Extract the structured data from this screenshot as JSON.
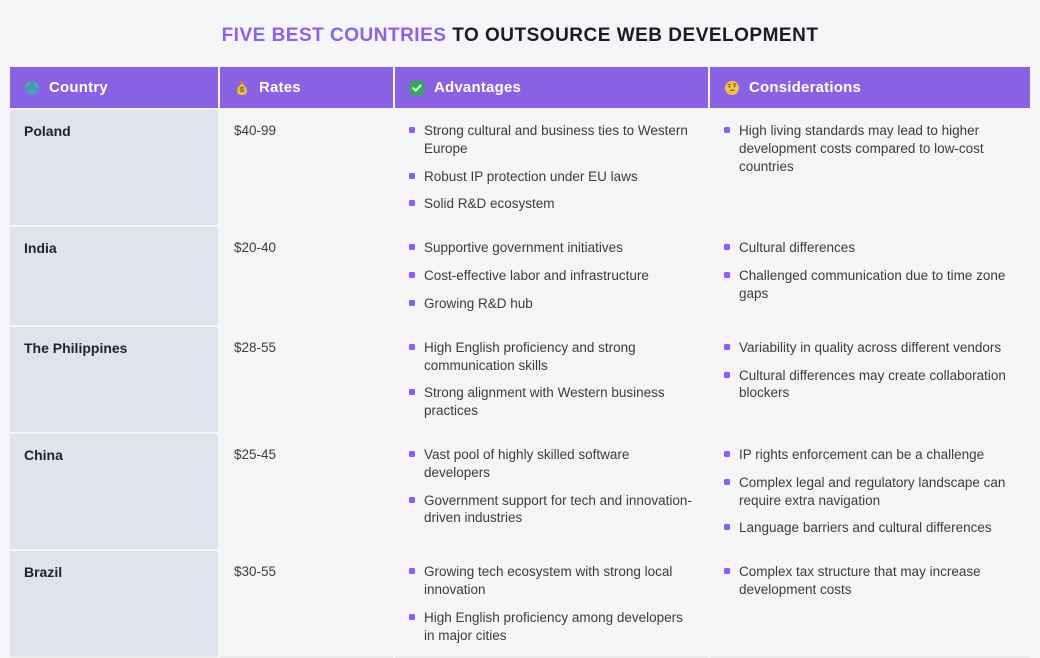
{
  "title": {
    "highlight": "FIVE BEST COUNTRIES",
    "rest": "TO OUTSOURCE WEB DEVELOPMENT"
  },
  "chart_data": {
    "type": "table",
    "title": "FIVE BEST COUNTRIES TO OUTSOURCE WEB DEVELOPMENT",
    "columns": [
      {
        "label": "Country",
        "icon": "globe-icon"
      },
      {
        "label": "Rates",
        "icon": "money-bag-icon"
      },
      {
        "label": "Advantages",
        "icon": "check-mark-icon"
      },
      {
        "label": "Considerations",
        "icon": "thinking-face-icon"
      }
    ],
    "rows": [
      {
        "country": "Poland",
        "rates": "$40-99",
        "advantages": [
          "Strong cultural and business ties to Western Europe",
          "Robust IP protection under EU laws",
          "Solid R&D ecosystem"
        ],
        "considerations": [
          "High living standards may lead to higher development costs compared to low-cost countries"
        ]
      },
      {
        "country": "India",
        "rates": "$20-40",
        "advantages": [
          "Supportive government initiatives",
          "Cost-effective labor and infrastructure",
          "Growing R&D hub"
        ],
        "considerations": [
          "Cultural differences",
          "Challenged communication due to time zone gaps"
        ]
      },
      {
        "country": "The Philippines",
        "rates": "$28-55",
        "advantages": [
          "High English proficiency and strong communication skills",
          "Strong alignment with Western business practices"
        ],
        "considerations": [
          "Variability in quality across different vendors",
          "Cultural differences may create collaboration blockers"
        ]
      },
      {
        "country": "China",
        "rates": "$25-45",
        "advantages": [
          "Vast pool of highly skilled software developers",
          "Government support for tech and innovation-driven industries"
        ],
        "considerations": [
          "IP rights enforcement can be a challenge",
          "Complex legal and regulatory landscape can require extra navigation",
          "Language barriers and cultural differences"
        ]
      },
      {
        "country": "Brazil",
        "rates": "$30-55",
        "advantages": [
          "Growing tech ecosystem with strong local innovation",
          "High English proficiency among developers in major cities"
        ],
        "considerations": [
          "Complex tax structure that may increase development costs"
        ]
      }
    ]
  },
  "colors": {
    "accent_purple": "#8a63e6",
    "header_bg": "#8862e2",
    "country_cell_bg": "#dfe4ea",
    "cell_bg": "#f5f5f6",
    "bullet": "#8b5cf6",
    "title_dark": "#1b1b24",
    "body_text": "#3b3b45",
    "page_bg": "#f5f4f6"
  }
}
